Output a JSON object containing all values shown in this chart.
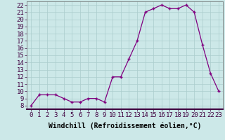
{
  "x": [
    0,
    1,
    2,
    3,
    4,
    5,
    6,
    7,
    8,
    9,
    10,
    11,
    12,
    13,
    14,
    15,
    16,
    17,
    18,
    19,
    20,
    21,
    22,
    23
  ],
  "y": [
    8,
    9.5,
    9.5,
    9.5,
    9,
    8.5,
    8.5,
    9,
    9,
    8.5,
    12,
    12,
    14.5,
    17,
    21,
    21.5,
    22,
    21.5,
    21.5,
    22,
    21,
    16.5,
    12.5,
    10
  ],
  "xlabel": "Windchill (Refroidissement éolien,°C)",
  "xlim": [
    -0.5,
    23.5
  ],
  "ylim": [
    7.5,
    22.5
  ],
  "yticks": [
    8,
    9,
    10,
    11,
    12,
    13,
    14,
    15,
    16,
    17,
    18,
    19,
    20,
    21,
    22
  ],
  "xticks": [
    0,
    1,
    2,
    3,
    4,
    5,
    6,
    7,
    8,
    9,
    10,
    11,
    12,
    13,
    14,
    15,
    16,
    17,
    18,
    19,
    20,
    21,
    22,
    23
  ],
  "line_color": "#800080",
  "bg_color": "#cce8e8",
  "grid_color": "#aacccc",
  "label_fontsize": 7,
  "tick_fontsize": 6.5
}
